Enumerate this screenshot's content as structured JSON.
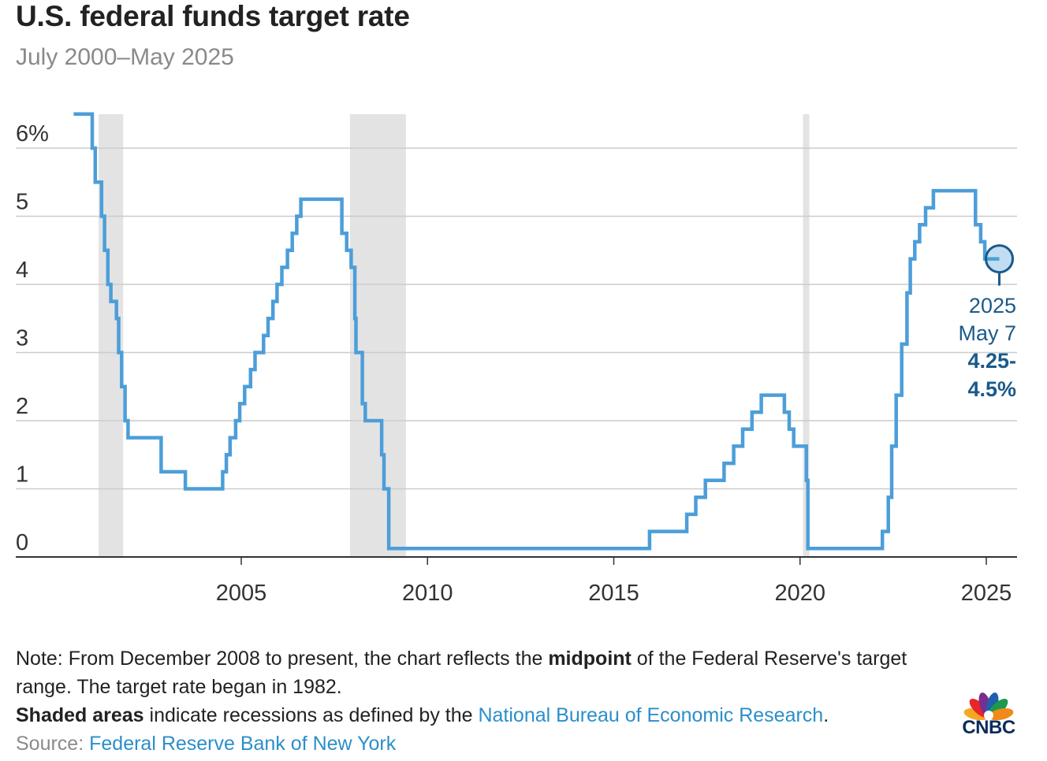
{
  "title": "U.S. federal funds target rate",
  "subtitle": "July 2000–May 2025",
  "notes": {
    "line1_a": "Note: From December 2008 to present, the chart reflects the ",
    "line1_b": "midpoint",
    "line1_c": " of the Federal Reserve's target range. The target rate began in 1982.",
    "line2_a": "Shaded areas",
    "line2_b": " indicate recessions as defined by the ",
    "line2_link": "National Bureau of Economic Research",
    "line2_c": "."
  },
  "source": {
    "label": "Source: ",
    "link": "Federal Reserve Bank of New York"
  },
  "logo": {
    "text": "CNBC",
    "icon": "peacock-icon"
  },
  "colors": {
    "line": "#4c9ed9",
    "recession": "#e3e3e3",
    "grid": "#cccccc",
    "axis": "#333333",
    "annotation": "#1a5a8a",
    "link": "#2b8fc9"
  },
  "chart_data": {
    "type": "line",
    "title": "U.S. federal funds target rate",
    "subtitle": "July 2000–May 2025",
    "xlabel": "",
    "ylabel": "",
    "ylim": [
      0,
      6.5
    ],
    "xlim": [
      2000.0,
      2025.85
    ],
    "grid": true,
    "y_ticks": [
      {
        "value": 0,
        "label": "0"
      },
      {
        "value": 1,
        "label": "1"
      },
      {
        "value": 2,
        "label": "2"
      },
      {
        "value": 3,
        "label": "3"
      },
      {
        "value": 4,
        "label": "4"
      },
      {
        "value": 5,
        "label": "5"
      },
      {
        "value": 6,
        "label": "6%"
      }
    ],
    "x_ticks": [
      {
        "value": 2005,
        "label": "2005"
      },
      {
        "value": 2010,
        "label": "2010"
      },
      {
        "value": 2015,
        "label": "2015"
      },
      {
        "value": 2020,
        "label": "2020"
      },
      {
        "value": 2025,
        "label": "2025"
      }
    ],
    "recessions": [
      [
        2001.17,
        2001.83
      ],
      [
        2007.92,
        2009.42
      ],
      [
        2020.08,
        2020.25
      ]
    ],
    "series": [
      {
        "step": true,
        "points": [
          [
            2000.5,
            6.5
          ],
          [
            2001.0,
            6.0
          ],
          [
            2001.08,
            5.5
          ],
          [
            2001.25,
            5.0
          ],
          [
            2001.33,
            4.5
          ],
          [
            2001.42,
            4.0
          ],
          [
            2001.5,
            3.75
          ],
          [
            2001.65,
            3.5
          ],
          [
            2001.71,
            3.0
          ],
          [
            2001.79,
            2.5
          ],
          [
            2001.88,
            2.0
          ],
          [
            2001.96,
            1.75
          ],
          [
            2002.85,
            1.25
          ],
          [
            2003.5,
            1.0
          ],
          [
            2004.5,
            1.25
          ],
          [
            2004.6,
            1.5
          ],
          [
            2004.7,
            1.75
          ],
          [
            2004.85,
            2.0
          ],
          [
            2004.96,
            2.25
          ],
          [
            2005.09,
            2.5
          ],
          [
            2005.25,
            2.75
          ],
          [
            2005.37,
            3.0
          ],
          [
            2005.6,
            3.25
          ],
          [
            2005.72,
            3.5
          ],
          [
            2005.85,
            3.75
          ],
          [
            2005.96,
            4.0
          ],
          [
            2006.09,
            4.25
          ],
          [
            2006.24,
            4.5
          ],
          [
            2006.37,
            4.75
          ],
          [
            2006.49,
            5.0
          ],
          [
            2006.6,
            5.25
          ],
          [
            2007.7,
            4.75
          ],
          [
            2007.83,
            4.5
          ],
          [
            2007.95,
            4.25
          ],
          [
            2008.05,
            3.5
          ],
          [
            2008.08,
            3.0
          ],
          [
            2008.25,
            2.25
          ],
          [
            2008.33,
            2.0
          ],
          [
            2008.77,
            1.5
          ],
          [
            2008.83,
            1.0
          ],
          [
            2008.96,
            0.125
          ],
          [
            2015.96,
            0.375
          ],
          [
            2016.96,
            0.625
          ],
          [
            2017.2,
            0.875
          ],
          [
            2017.46,
            1.125
          ],
          [
            2017.96,
            1.375
          ],
          [
            2018.22,
            1.625
          ],
          [
            2018.46,
            1.875
          ],
          [
            2018.71,
            2.125
          ],
          [
            2018.96,
            2.375
          ],
          [
            2019.58,
            2.125
          ],
          [
            2019.71,
            1.875
          ],
          [
            2019.83,
            1.625
          ],
          [
            2020.17,
            1.125
          ],
          [
            2020.21,
            0.125
          ],
          [
            2022.21,
            0.375
          ],
          [
            2022.37,
            0.875
          ],
          [
            2022.46,
            1.625
          ],
          [
            2022.58,
            2.375
          ],
          [
            2022.73,
            3.125
          ],
          [
            2022.87,
            3.875
          ],
          [
            2022.96,
            4.375
          ],
          [
            2023.08,
            4.625
          ],
          [
            2023.21,
            4.875
          ],
          [
            2023.37,
            5.125
          ],
          [
            2023.58,
            5.375
          ],
          [
            2024.71,
            4.875
          ],
          [
            2024.85,
            4.625
          ],
          [
            2024.96,
            4.375
          ],
          [
            2025.35,
            4.375
          ]
        ]
      }
    ],
    "annotation": {
      "x": 2025.35,
      "y": 4.375,
      "line1": "2025",
      "line2": "May 7",
      "line3": "4.25-",
      "line4": "4.5%"
    }
  }
}
